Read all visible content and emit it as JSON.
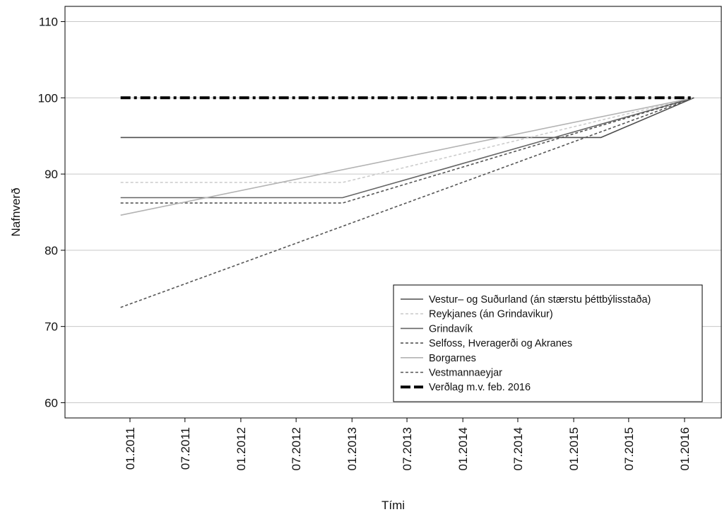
{
  "chart_data": {
    "type": "line",
    "title": "",
    "xlabel": "Tími",
    "ylabel": "Nafnverð",
    "ylim": [
      58,
      112
    ],
    "xlim": [
      "2010-06-01",
      "2016-05-01"
    ],
    "yticks": [
      60,
      70,
      80,
      90,
      100,
      110
    ],
    "xticks": [
      "01.2011",
      "07.2011",
      "01.2012",
      "07.2012",
      "01.2013",
      "07.2013",
      "01.2014",
      "07.2014",
      "01.2015",
      "07.2015",
      "01.2016"
    ],
    "grid": "horizontal",
    "legend_position": "bottom-right",
    "series": [
      {
        "name": "Vestur– og Suðurland (án stærstu þéttbýlisstaða)",
        "color": "#4d4d4d",
        "dash": "solid",
        "points": [
          [
            "2010-12-01",
            94.8
          ],
          [
            "2015-02-01",
            94.8
          ],
          [
            "2015-04-01",
            94.8
          ],
          [
            "2016-02-01",
            100
          ]
        ]
      },
      {
        "name": "Reykjanes (án Grindavikur)",
        "color": "#cccccc",
        "dash": "dashed",
        "points": [
          [
            "2010-12-01",
            88.9
          ],
          [
            "2012-12-01",
            88.9
          ],
          [
            "2016-02-01",
            100
          ]
        ]
      },
      {
        "name": "Grindavík",
        "color": "#666666",
        "dash": "solid",
        "points": [
          [
            "2010-12-01",
            86.9
          ],
          [
            "2012-12-01",
            86.9
          ],
          [
            "2016-02-01",
            100
          ]
        ]
      },
      {
        "name": "Selfoss, Hveragerði og Akranes",
        "color": "#555555",
        "dash": "dashed",
        "points": [
          [
            "2010-12-01",
            86.2
          ],
          [
            "2012-12-01",
            86.2
          ],
          [
            "2016-02-01",
            100
          ]
        ]
      },
      {
        "name": "Borgarnes",
        "color": "#b3b3b3",
        "dash": "solid",
        "points": [
          [
            "2010-12-01",
            84.6
          ],
          [
            "2016-02-01",
            100
          ]
        ]
      },
      {
        "name": "Vestmannaeyjar",
        "color": "#555555",
        "dash": "dashed",
        "points": [
          [
            "2010-12-01",
            72.5
          ],
          [
            "2016-02-01",
            100
          ]
        ]
      },
      {
        "name": "Verðlag m.v. feb. 2016",
        "color": "#000000",
        "dash": "dotdash",
        "points": [
          [
            "2010-12-01",
            100
          ],
          [
            "2016-02-01",
            100
          ]
        ]
      }
    ]
  }
}
